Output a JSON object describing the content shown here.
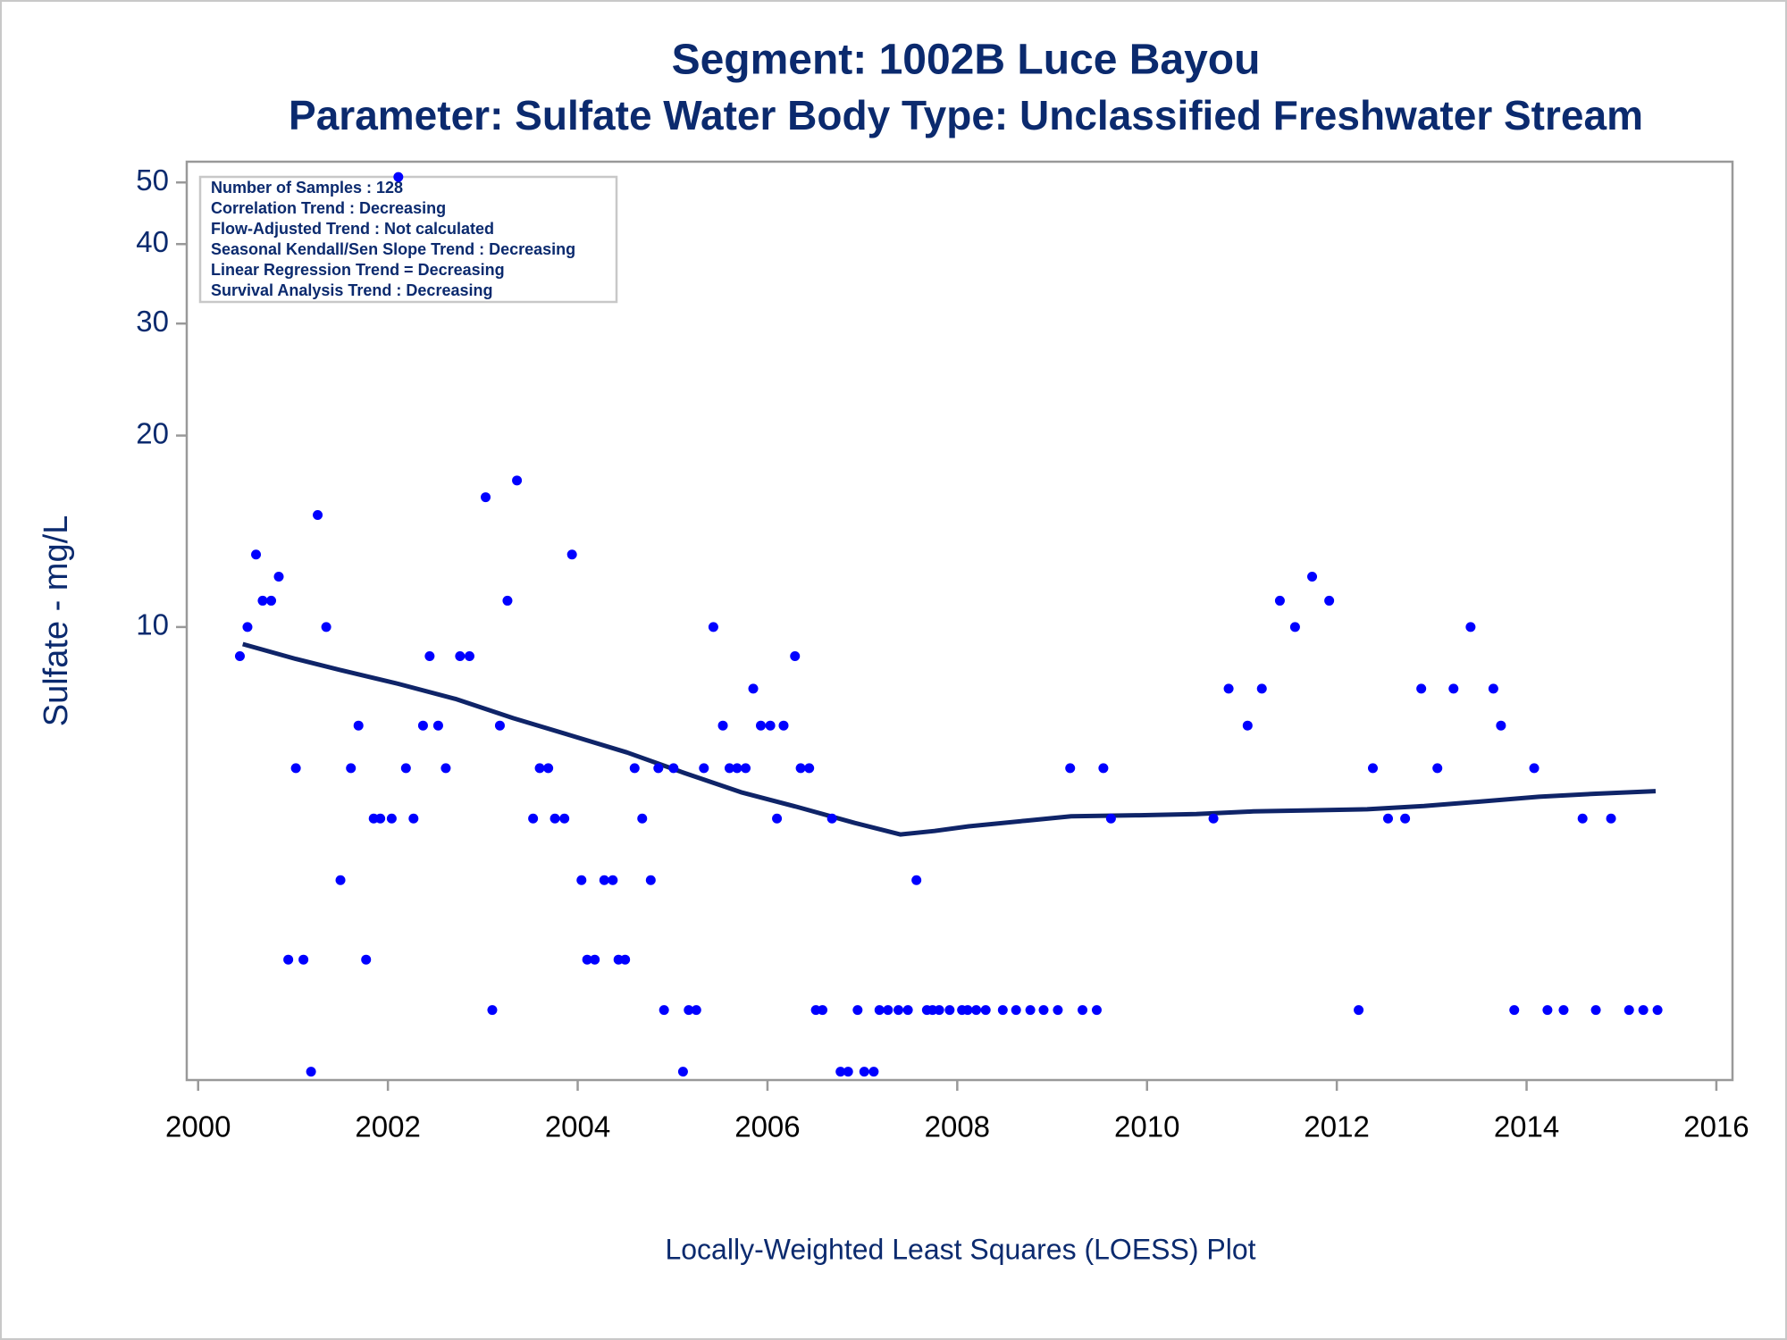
{
  "chart_data": {
    "type": "scatter",
    "title": "Segment: 1002B  Luce Bayou",
    "subtitle": "Parameter: Sulfate   Water Body Type: Unclassified Freshwater Stream",
    "ylabel": "Sulfate - mg/L",
    "footnote": "Locally-Weighted Least Squares (LOESS) Plot",
    "annotations": [
      "Number of Samples : 128",
      "Correlation Trend : Decreasing",
      "Flow-Adjusted Trend : Not calculated",
      "Seasonal Kendall/Sen Slope Trend : Decreasing",
      "Linear Regression Trend = Decreasing",
      "Survival Analysis Trend : Decreasing"
    ],
    "log_y": true,
    "xlim": [
      1999.88,
      2016.17
    ],
    "xticks": [
      2000,
      2002,
      2004,
      2006,
      2008,
      2010,
      2012,
      2014,
      2016
    ],
    "ylim": [
      1.94,
      53.9
    ],
    "yticks": [
      10,
      20,
      30,
      40,
      50
    ],
    "points": {
      "color": "#0000ff",
      "x": [
        2000.44,
        2000.52,
        2000.61,
        2000.68,
        2000.77,
        2000.85,
        2000.95,
        2001.03,
        2001.11,
        2001.19,
        2001.26,
        2001.35,
        2001.5,
        2001.61,
        2001.69,
        2001.77,
        2001.85,
        2001.92,
        2002.04,
        2002.11,
        2002.19,
        2002.27,
        2002.37,
        2002.44,
        2002.53,
        2002.61,
        2002.76,
        2002.86,
        2003.03,
        2003.1,
        2003.18,
        2003.26,
        2003.36,
        2003.53,
        2003.6,
        2003.69,
        2003.76,
        2003.86,
        2003.94,
        2004.04,
        2004.1,
        2004.18,
        2004.28,
        2004.37,
        2004.43,
        2004.5,
        2004.6,
        2004.68,
        2004.77,
        2004.85,
        2004.91,
        2005.01,
        2005.11,
        2005.17,
        2005.25,
        2005.33,
        2005.43,
        2005.53,
        2005.6,
        2005.68,
        2005.77,
        2005.85,
        2005.93,
        2006.03,
        2006.1,
        2006.17,
        2006.29,
        2006.35,
        2006.44,
        2006.51,
        2006.58,
        2006.68,
        2006.77,
        2006.85,
        2006.95,
        2007.02,
        2007.12,
        2007.18,
        2007.27,
        2007.38,
        2007.48,
        2007.57,
        2007.68,
        2007.74,
        2007.81,
        2007.92,
        2008.05,
        2008.11,
        2008.2,
        2008.3,
        2008.48,
        2008.62,
        2008.77,
        2008.91,
        2009.06,
        2009.19,
        2009.32,
        2009.47,
        2009.54,
        2009.62,
        2010.7,
        2010.86,
        2011.06,
        2011.21,
        2011.4,
        2011.56,
        2011.74,
        2011.92,
        2012.23,
        2012.38,
        2012.54,
        2012.72,
        2012.89,
        2013.06,
        2013.23,
        2013.41,
        2013.65,
        2013.73,
        2013.87,
        2014.08,
        2014.22,
        2014.39,
        2014.59,
        2014.73,
        2014.89,
        2015.08,
        2015.23,
        2015.38
      ],
      "values": [
        9,
        10,
        13,
        11,
        11,
        12,
        3,
        6,
        3,
        2,
        15,
        10,
        4,
        6,
        7,
        3,
        5,
        5,
        5,
        51,
        6,
        5,
        7,
        9,
        7,
        6,
        9,
        9,
        16,
        2.5,
        7,
        11,
        17,
        5,
        6,
        6,
        5,
        5,
        13,
        4,
        3,
        3,
        4,
        4,
        3,
        3,
        6,
        5,
        4,
        6,
        2.5,
        6,
        2,
        2.5,
        2.5,
        6,
        10,
        7,
        6,
        6,
        6,
        8,
        7,
        7,
        5,
        7,
        9,
        6,
        6,
        2.5,
        2.5,
        5,
        2,
        2,
        2.5,
        2,
        2,
        2.5,
        2.5,
        2.5,
        2.5,
        4,
        2.5,
        2.5,
        2.5,
        2.5,
        2.5,
        2.5,
        2.5,
        2.5,
        2.5,
        2.5,
        2.5,
        2.5,
        2.5,
        6,
        2.5,
        2.5,
        6,
        5,
        5,
        8,
        7,
        8,
        11,
        10,
        12,
        11,
        2.5,
        6,
        5,
        5,
        8,
        6,
        8,
        10,
        8,
        7,
        2.5,
        6,
        2.5,
        2.5,
        5,
        2.5,
        5,
        2.5,
        2.5,
        2.5
      ]
    },
    "trend": {
      "color": "#0f2468",
      "x": [
        2000.47,
        2001.03,
        2001.51,
        2002.11,
        2002.71,
        2003.32,
        2003.92,
        2004.52,
        2005.12,
        2005.72,
        2006.32,
        2006.92,
        2007.4,
        2007.76,
        2008.12,
        2008.72,
        2009.2,
        2009.92,
        2010.52,
        2011.12,
        2011.72,
        2012.32,
        2012.92,
        2013.53,
        2014.13,
        2014.73,
        2015.36
      ],
      "values": [
        9.4,
        8.91,
        8.55,
        8.14,
        7.71,
        7.19,
        6.76,
        6.35,
        5.9,
        5.5,
        5.21,
        4.92,
        4.72,
        4.78,
        4.86,
        4.96,
        5.04,
        5.06,
        5.08,
        5.13,
        5.15,
        5.17,
        5.23,
        5.32,
        5.41,
        5.47,
        5.52
      ]
    }
  }
}
